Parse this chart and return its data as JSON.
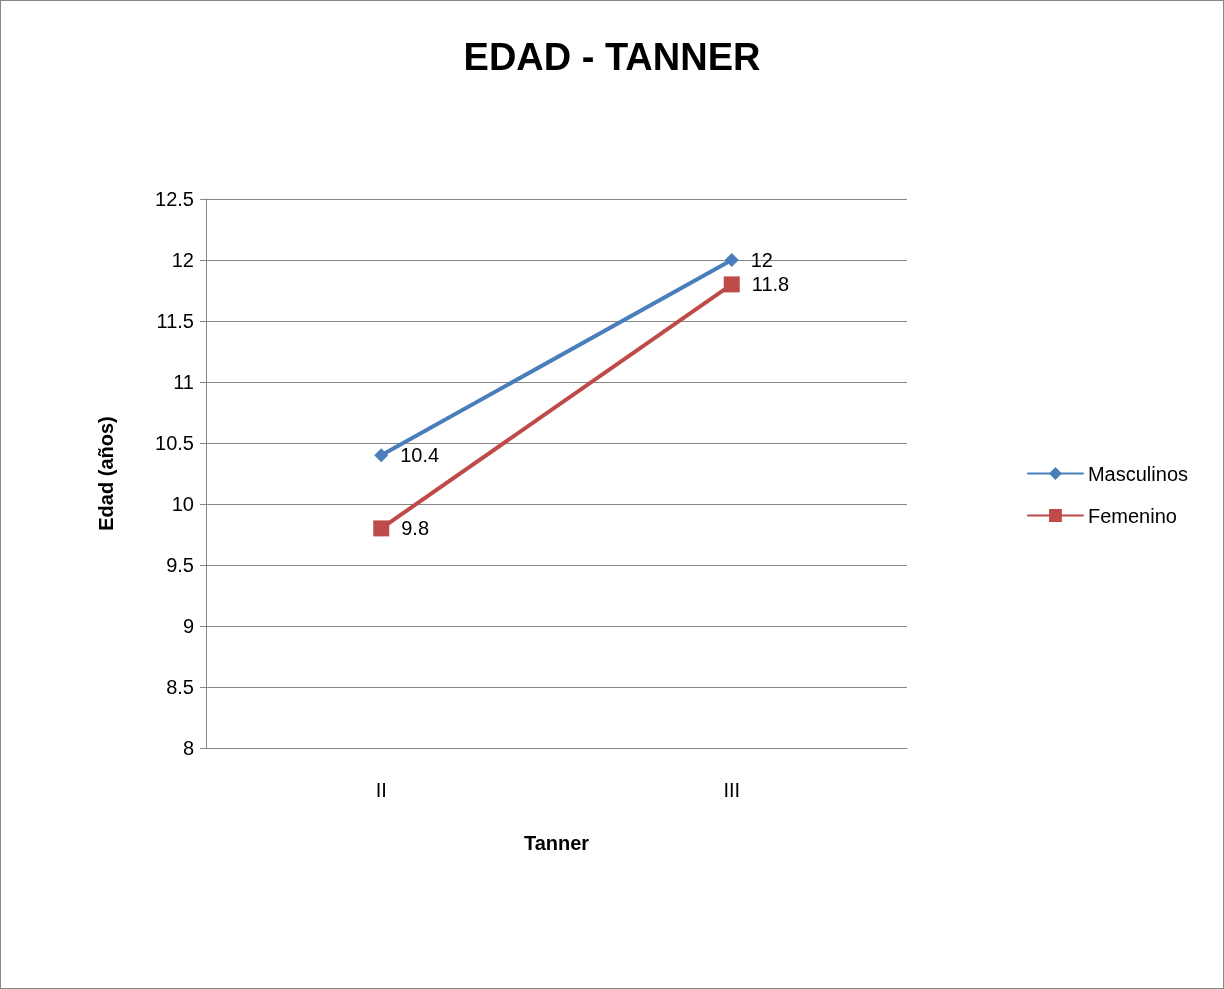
{
  "chart_data": {
    "type": "line",
    "title": "EDAD - TANNER",
    "xlabel": "Tanner",
    "ylabel": "Edad (años)",
    "categories": [
      "II",
      "III"
    ],
    "series": [
      {
        "name": "Masculinos",
        "color": "#4a7ebb",
        "values": [
          10.4,
          12
        ],
        "marker": "diamond"
      },
      {
        "name": "Femenino",
        "color": "#be4b48",
        "values": [
          9.8,
          11.8
        ],
        "marker": "square"
      }
    ],
    "ylim": [
      8,
      12.5
    ],
    "yticks": [
      8,
      8.5,
      9,
      9.5,
      10,
      10.5,
      11,
      11.5,
      12,
      12.5
    ],
    "grid": "y",
    "legend": "right",
    "data_labels": true
  }
}
